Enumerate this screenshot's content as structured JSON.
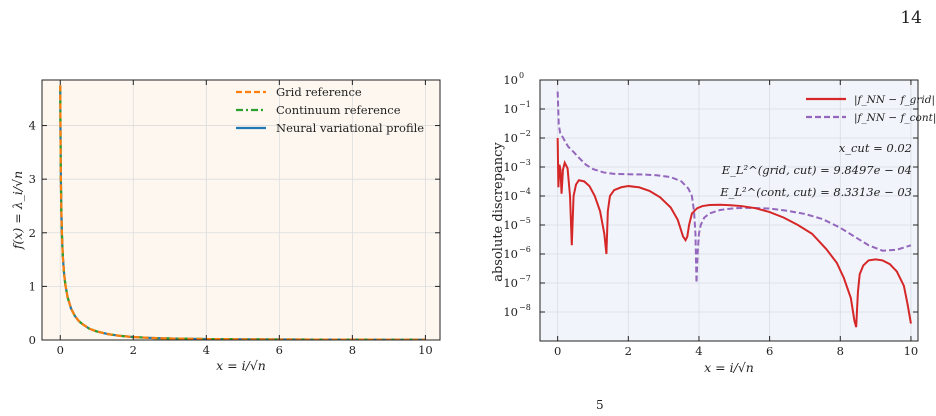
{
  "page": {
    "number": "14",
    "footer_mark": "5"
  },
  "chart_data": [
    {
      "type": "line",
      "xlabel": "x = i/√n",
      "ylabel": "f(x) = λ_i/√n",
      "xlim": [
        -0.5,
        10.4
      ],
      "ylim": [
        0,
        4.85
      ],
      "xticks": [
        0,
        2,
        4,
        6,
        8,
        10
      ],
      "yticks": [
        0,
        1,
        2,
        3,
        4
      ],
      "grid": true,
      "legend_position": "top-right",
      "background": "#fdf7f0",
      "series": [
        {
          "name": "Grid reference",
          "color": "#ff7f0e",
          "dash": "dashed",
          "x": [
            0.0,
            0.003,
            0.006,
            0.01,
            0.015,
            0.02,
            0.03,
            0.04,
            0.05,
            0.07,
            0.1,
            0.14,
            0.2,
            0.3,
            0.4,
            0.5,
            0.6,
            0.8,
            1.0,
            1.3,
            1.6,
            2.0,
            2.5,
            3.0,
            4.0,
            5.0,
            6.0,
            7.0,
            8.0,
            9.0,
            10.0
          ],
          "values": [
            4.75,
            4.35,
            3.95,
            3.55,
            3.15,
            2.85,
            2.43,
            2.12,
            1.89,
            1.57,
            1.27,
            1.03,
            0.8,
            0.58,
            0.45,
            0.36,
            0.3,
            0.21,
            0.16,
            0.11,
            0.08,
            0.055,
            0.038,
            0.028,
            0.018,
            0.013,
            0.01,
            0.008,
            0.007,
            0.006,
            0.005
          ]
        },
        {
          "name": "Continuum reference",
          "color": "#2ca02c",
          "dash": "dashdot",
          "x": [
            0.0,
            0.003,
            0.006,
            0.01,
            0.015,
            0.02,
            0.03,
            0.04,
            0.05,
            0.07,
            0.1,
            0.14,
            0.2,
            0.3,
            0.4,
            0.5,
            0.6,
            0.8,
            1.0,
            1.3,
            1.6,
            2.0,
            2.5,
            3.0,
            4.0,
            5.0,
            6.0,
            7.0,
            8.0,
            9.0,
            10.0
          ],
          "values": [
            4.75,
            4.35,
            3.95,
            3.55,
            3.15,
            2.85,
            2.43,
            2.12,
            1.89,
            1.57,
            1.27,
            1.03,
            0.8,
            0.58,
            0.45,
            0.36,
            0.3,
            0.21,
            0.16,
            0.11,
            0.08,
            0.055,
            0.038,
            0.028,
            0.018,
            0.013,
            0.01,
            0.008,
            0.007,
            0.006,
            0.005
          ]
        },
        {
          "name": "Neural variational profile",
          "color": "#1f77b4",
          "dash": "solid",
          "x": [
            0.0,
            0.003,
            0.006,
            0.01,
            0.015,
            0.02,
            0.03,
            0.04,
            0.05,
            0.07,
            0.1,
            0.14,
            0.2,
            0.3,
            0.4,
            0.5,
            0.6,
            0.8,
            1.0,
            1.3,
            1.6,
            2.0,
            2.5,
            3.0,
            4.0,
            5.0,
            6.0,
            7.0,
            8.0,
            9.0,
            10.0
          ],
          "values": [
            4.75,
            4.35,
            3.95,
            3.55,
            3.15,
            2.85,
            2.43,
            2.12,
            1.89,
            1.57,
            1.27,
            1.03,
            0.8,
            0.58,
            0.45,
            0.36,
            0.3,
            0.21,
            0.16,
            0.11,
            0.08,
            0.055,
            0.038,
            0.028,
            0.018,
            0.013,
            0.01,
            0.008,
            0.007,
            0.006,
            0.005
          ]
        }
      ]
    },
    {
      "type": "line",
      "xlabel": "x = i/√n",
      "ylabel": "absolute discrepancy",
      "y_scale": "log",
      "xlim": [
        -0.5,
        10.2
      ],
      "ylim": [
        1e-09,
        1
      ],
      "xticks": [
        0,
        2,
        4,
        6,
        8,
        10
      ],
      "yticks": [
        "10^0",
        "10^-1",
        "10^-2",
        "10^-3",
        "10^-4",
        "10^-5",
        "10^-6",
        "10^-7",
        "10^-8"
      ],
      "grid": true,
      "legend_position": "top-right",
      "background": "#f1f5fb",
      "annotation": {
        "line1": "x_cut = 0.02",
        "line2": "E_L²^(grid, cut) = 9.8497e − 04",
        "line3": "E_L²^(cont, cut) = 8.3313e − 03"
      },
      "series": [
        {
          "name": "|f_NN − f_grid|",
          "color": "#d62728",
          "dash": "solid",
          "x": [
            0.0,
            0.02,
            0.05,
            0.08,
            0.11,
            0.15,
            0.2,
            0.28,
            0.35,
            0.4,
            0.45,
            0.52,
            0.6,
            0.75,
            0.9,
            1.05,
            1.2,
            1.32,
            1.38,
            1.42,
            1.48,
            1.6,
            1.8,
            2.0,
            2.3,
            2.6,
            2.9,
            3.2,
            3.4,
            3.55,
            3.62,
            3.67,
            3.72,
            3.8,
            3.95,
            4.1,
            4.3,
            4.6,
            4.9,
            5.2,
            5.6,
            6.0,
            6.4,
            6.8,
            7.2,
            7.6,
            7.9,
            8.1,
            8.3,
            8.4,
            8.45,
            8.5,
            8.55,
            8.65,
            8.8,
            9.0,
            9.2,
            9.4,
            9.6,
            9.8,
            9.9,
            10.0
          ],
          "values": [
            0.01,
            0.0002,
            0.0012,
            0.0008,
            0.00012,
            0.0008,
            0.0014,
            0.0009,
            0.0001,
            2e-06,
            0.0001,
            0.00025,
            0.00035,
            0.00032,
            0.00022,
            0.0001,
            3e-05,
            5e-06,
            1e-06,
            3e-05,
            0.0001,
            0.00016,
            0.0002,
            0.00022,
            0.0002,
            0.00015,
            9e-05,
            4e-05,
            1.5e-05,
            4e-06,
            3e-06,
            4e-06,
            1e-05,
            2.5e-05,
            3.8e-05,
            4.5e-05,
            4.9e-05,
            5e-05,
            4.8e-05,
            4.5e-05,
            3.8e-05,
            2.8e-05,
            1.8e-05,
            1e-05,
            5e-06,
            1.5e-06,
            5e-07,
            1.5e-07,
            3e-08,
            5e-09,
            3e-09,
            5e-08,
            2e-07,
            4e-07,
            6e-07,
            6.5e-07,
            6e-07,
            4.5e-07,
            2.5e-07,
            8e-08,
            2e-08,
            4e-09
          ]
        },
        {
          "name": "|f_NN − f_cont|",
          "color": "#9467bd",
          "dash": "dashed",
          "x": [
            0.0,
            0.03,
            0.07,
            0.12,
            0.2,
            0.3,
            0.45,
            0.6,
            0.8,
            1.0,
            1.3,
            1.6,
            2.0,
            2.4,
            2.8,
            3.2,
            3.5,
            3.7,
            3.8,
            3.86,
            3.9,
            3.93,
            3.96,
            4.0,
            4.05,
            4.15,
            4.3,
            4.6,
            5.0,
            5.4,
            6.0,
            6.5,
            7.0,
            7.5,
            8.0,
            8.4,
            8.8,
            9.2,
            9.6,
            10.0
          ],
          "values": [
            0.4,
            0.03,
            0.015,
            0.012,
            0.008,
            0.005,
            0.0033,
            0.0021,
            0.0012,
            0.00085,
            0.00065,
            0.00058,
            0.00056,
            0.00055,
            0.00052,
            0.00045,
            0.00032,
            0.00018,
            0.0001,
            3e-05,
            5e-06,
            1e-07,
            1e-06,
            5e-06,
            1e-05,
            1.8e-05,
            2.5e-05,
            3.3e-05,
            3.8e-05,
            3.9e-05,
            3.7e-05,
            3.1e-05,
            2.4e-05,
            1.6e-05,
            8e-06,
            4e-06,
            2e-06,
            1.3e-06,
            1.4e-06,
            2e-06
          ]
        }
      ]
    }
  ]
}
